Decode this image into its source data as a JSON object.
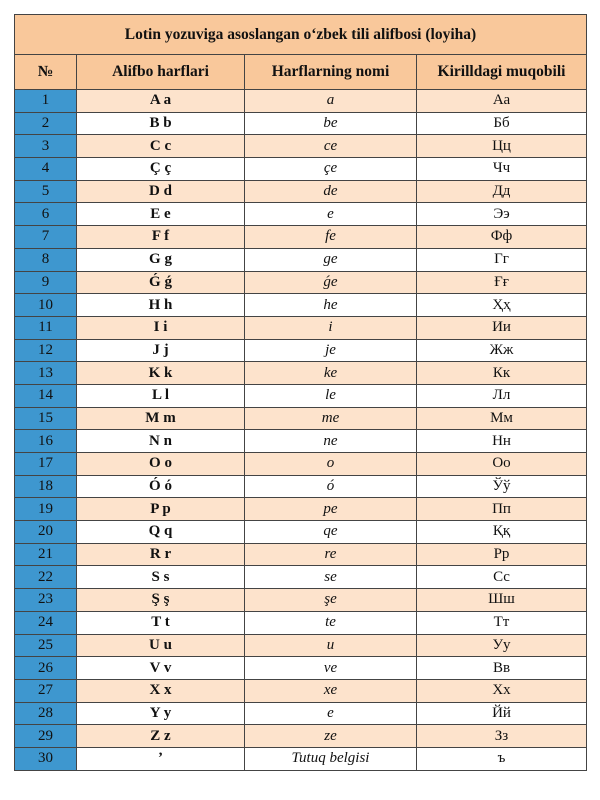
{
  "title": "Lotin yozuviga asoslangan o‘zbek tili alifbosi (loyiha)",
  "headers": [
    "№",
    "Alifbo harflari",
    "Harflarning nomi",
    "Kirilldagi muqobili"
  ],
  "colors": {
    "header": "#f9c89b",
    "odd_row": "#fde3cc",
    "number_column": "#3e97cf"
  },
  "rows": [
    [
      "1",
      "A a",
      "a",
      "Аа"
    ],
    [
      "2",
      "B b",
      "be",
      "Бб"
    ],
    [
      "3",
      "C c",
      "ce",
      "Цц"
    ],
    [
      "4",
      "Ç ç",
      "çe",
      "Чч"
    ],
    [
      "5",
      "D d",
      "de",
      "Дд"
    ],
    [
      "6",
      "E e",
      "e",
      "Ээ"
    ],
    [
      "7",
      "F f",
      "fe",
      "Фф"
    ],
    [
      "8",
      "G g",
      "ge",
      "Гг"
    ],
    [
      "9",
      "Ǵ ǵ",
      "ǵe",
      "Ғғ"
    ],
    [
      "10",
      "H h",
      "he",
      "Ҳҳ"
    ],
    [
      "11",
      "I i",
      "i",
      "Ии"
    ],
    [
      "12",
      "J j",
      "je",
      "Жж"
    ],
    [
      "13",
      "K k",
      "ke",
      "Кк"
    ],
    [
      "14",
      "L l",
      "le",
      "Лл"
    ],
    [
      "15",
      "M m",
      "me",
      "Мм"
    ],
    [
      "16",
      "N n",
      "ne",
      "Нн"
    ],
    [
      "17",
      "O o",
      "o",
      "Оо"
    ],
    [
      "18",
      "Ó ó",
      "ó",
      "Ўў"
    ],
    [
      "19",
      "P p",
      "pe",
      "Пп"
    ],
    [
      "20",
      "Q q",
      "qe",
      "Ққ"
    ],
    [
      "21",
      "R r",
      "re",
      "Рр"
    ],
    [
      "22",
      "S s",
      "se",
      "Сс"
    ],
    [
      "23",
      "Ş ş",
      "şe",
      "Шш"
    ],
    [
      "24",
      "T t",
      "te",
      "Тт"
    ],
    [
      "25",
      "U u",
      "u",
      "Уу"
    ],
    [
      "26",
      "V v",
      "ve",
      "Вв"
    ],
    [
      "27",
      "X x",
      "xe",
      "Хх"
    ],
    [
      "28",
      "Y y",
      "e",
      "Йй"
    ],
    [
      "29",
      "Z z",
      "ze",
      "Зз"
    ],
    [
      "30",
      "’",
      "Tutuq belgisi",
      "ъ"
    ]
  ]
}
